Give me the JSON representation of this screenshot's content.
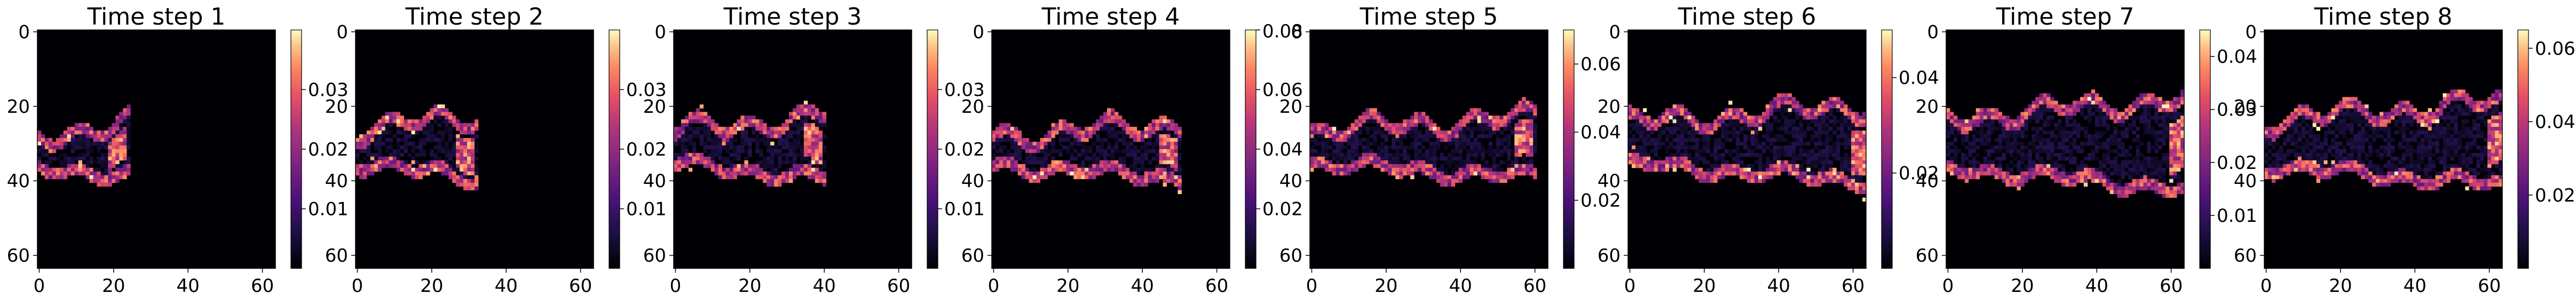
{
  "chart_data": [
    {
      "type": "heatmap",
      "title": "Time step 1",
      "x_ticks": [
        0,
        20,
        40,
        60
      ],
      "y_ticks": [
        0,
        20,
        40,
        60
      ],
      "xlim": [
        0,
        63
      ],
      "ylim": [
        63,
        0
      ],
      "colormap": "magma",
      "colorbar": {
        "min": 0,
        "max": 0.04,
        "ticks": [
          0.01,
          0.02,
          0.03
        ],
        "tick_labels": [
          "0.01",
          "0.02",
          "0.03"
        ]
      },
      "band_center_y": 32,
      "band_halfwidth": 7,
      "band_end_x": 22
    },
    {
      "type": "heatmap",
      "title": "Time step 2",
      "x_ticks": [
        0,
        20,
        40,
        60
      ],
      "y_ticks": [
        0,
        20,
        40,
        60
      ],
      "xlim": [
        0,
        63
      ],
      "ylim": [
        63,
        0
      ],
      "colormap": "magma",
      "colorbar": {
        "min": 0,
        "max": 0.04,
        "ticks": [
          0.01,
          0.02,
          0.03
        ],
        "tick_labels": [
          "0.01",
          "0.02",
          "0.03"
        ]
      },
      "band_center_y": 31,
      "band_halfwidth": 8,
      "band_end_x": 30
    },
    {
      "type": "heatmap",
      "title": "Time step 3",
      "x_ticks": [
        0,
        20,
        40,
        60
      ],
      "y_ticks": [
        0,
        20,
        40,
        60
      ],
      "xlim": [
        0,
        63
      ],
      "ylim": [
        63,
        0
      ],
      "colormap": "magma",
      "colorbar": {
        "min": 0,
        "max": 0.04,
        "ticks": [
          0.01,
          0.02,
          0.03
        ],
        "tick_labels": [
          "0.01",
          "0.02",
          "0.03"
        ]
      },
      "band_center_y": 31,
      "band_halfwidth": 8,
      "band_end_x": 38
    },
    {
      "type": "heatmap",
      "title": "Time step 4",
      "x_ticks": [
        0,
        20,
        40,
        60
      ],
      "y_ticks": [
        0,
        20,
        40,
        60
      ],
      "xlim": [
        0,
        63
      ],
      "ylim": [
        63,
        0
      ],
      "colormap": "magma",
      "colorbar": {
        "min": 0,
        "max": 0.08,
        "ticks": [
          0.02,
          0.04,
          0.06
        ],
        "tick_labels": [
          "0.02",
          "0.04",
          "0.06"
        ],
        "top_label": "0.08"
      },
      "band_center_y": 32,
      "band_halfwidth": 7,
      "band_end_x": 48
    },
    {
      "type": "heatmap",
      "title": "Time step 5",
      "x_ticks": [
        0,
        20,
        40,
        60
      ],
      "y_ticks": [
        0,
        20,
        40,
        60
      ],
      "xlim": [
        0,
        63
      ],
      "ylim": [
        63,
        0
      ],
      "colormap": "magma",
      "colorbar": {
        "min": 0,
        "max": 0.07,
        "ticks": [
          0.02,
          0.04,
          0.06
        ],
        "tick_labels": [
          "0.02",
          "0.04",
          "0.06"
        ]
      },
      "band_center_y": 31,
      "band_halfwidth": 8,
      "band_end_x": 58
    },
    {
      "type": "heatmap",
      "title": "Time step 6",
      "x_ticks": [
        0,
        20,
        40,
        60
      ],
      "y_ticks": [
        0,
        20,
        40,
        60
      ],
      "xlim": [
        0,
        63
      ],
      "ylim": [
        63,
        0
      ],
      "colormap": "magma",
      "colorbar": {
        "min": 0,
        "max": 0.05,
        "ticks": [
          0.02,
          0.04
        ],
        "tick_labels": [
          "0.02",
          "0.04"
        ]
      },
      "band_center_y": 30,
      "band_halfwidth": 10,
      "band_end_x": 63
    },
    {
      "type": "heatmap",
      "title": "Time step 7",
      "x_ticks": [
        0,
        20,
        40,
        60
      ],
      "y_ticks": [
        0,
        20,
        40,
        60
      ],
      "xlim": [
        0,
        63
      ],
      "ylim": [
        63,
        0
      ],
      "colormap": "magma",
      "colorbar": {
        "min": 0,
        "max": 0.045,
        "ticks": [
          0.01,
          0.02,
          0.03,
          0.04
        ],
        "tick_labels": [
          "0.01",
          "0.02",
          "0.03",
          "0.04"
        ]
      },
      "band_center_y": 30,
      "band_halfwidth": 12,
      "band_end_x": 63
    },
    {
      "type": "heatmap",
      "title": "Time step 8",
      "x_ticks": [
        0,
        20,
        40,
        60
      ],
      "y_ticks": [
        0,
        20,
        40,
        60
      ],
      "xlim": [
        0,
        63
      ],
      "ylim": [
        63,
        0
      ],
      "colormap": "magma",
      "colorbar": {
        "min": 0,
        "max": 0.065,
        "ticks": [
          0.02,
          0.04,
          0.06
        ],
        "tick_labels": [
          "0.02",
          "0.04",
          "0.06"
        ]
      },
      "band_center_y": 30,
      "band_halfwidth": 11,
      "band_end_x": 63
    }
  ]
}
